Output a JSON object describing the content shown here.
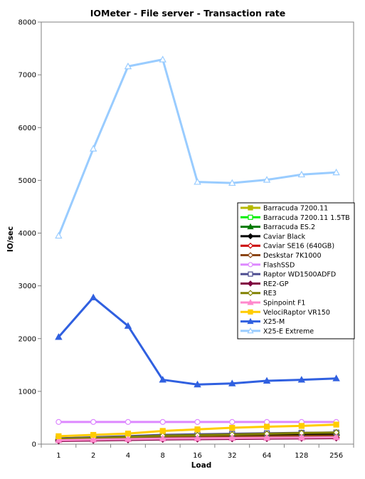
{
  "chart_data": {
    "type": "line",
    "title": "IOMeter - File server - Transaction rate",
    "xlabel": "Load",
    "ylabel": "IO/sec",
    "categories": [
      "1",
      "2",
      "4",
      "8",
      "16",
      "32",
      "64",
      "128",
      "256"
    ],
    "ylim": [
      0,
      8000
    ],
    "yticks": [
      "0",
      "1000",
      "2000",
      "3000",
      "4000",
      "5000",
      "6000",
      "7000",
      "8000"
    ],
    "grid": false,
    "legend_position": "right",
    "series": [
      {
        "name": "Barracuda 7200.11",
        "color": "#b5b800",
        "marker": "square-filled",
        "values": [
          100,
          115,
          130,
          150,
          160,
          170,
          185,
          200,
          210
        ]
      },
      {
        "name": "Barracuda 7200.11 1.5TB",
        "color": "#00ee00",
        "marker": "square-open",
        "values": [
          95,
          110,
          125,
          145,
          155,
          165,
          180,
          195,
          205
        ]
      },
      {
        "name": "Barracuda ES.2",
        "color": "#007a00",
        "marker": "triangle-filled",
        "values": [
          105,
          120,
          135,
          155,
          165,
          178,
          190,
          205,
          215
        ]
      },
      {
        "name": "Caviar Black",
        "color": "#000000",
        "marker": "diamond-filled",
        "values": [
          90,
          105,
          118,
          135,
          145,
          155,
          165,
          175,
          185
        ]
      },
      {
        "name": "Caviar SE16 (640GB)",
        "color": "#cc0000",
        "marker": "diamond-open",
        "values": [
          70,
          80,
          90,
          100,
          105,
          110,
          115,
          120,
          125
        ]
      },
      {
        "name": "Deskstar 7K1000",
        "color": "#8b4513",
        "marker": "diamond-open",
        "values": [
          85,
          98,
          110,
          125,
          132,
          140,
          148,
          155,
          160
        ]
      },
      {
        "name": "FlashSSD",
        "color": "#dd88ff",
        "marker": "circle-open",
        "values": [
          420,
          420,
          420,
          420,
          420,
          420,
          420,
          420,
          420
        ]
      },
      {
        "name": "Raptor WD1500ADFD",
        "color": "#4b4b8f",
        "marker": "square-open",
        "values": [
          110,
          130,
          150,
          175,
          185,
          195,
          205,
          215,
          220
        ]
      },
      {
        "name": "RE2-GP",
        "color": "#800040",
        "marker": "diamond-filled",
        "values": [
          60,
          70,
          80,
          90,
          95,
          100,
          105,
          110,
          115
        ]
      },
      {
        "name": "RE3",
        "color": "#808000",
        "marker": "diamond-open",
        "values": [
          100,
          118,
          135,
          160,
          170,
          182,
          195,
          210,
          220
        ]
      },
      {
        "name": "Spinpoint F1",
        "color": "#ff88cc",
        "marker": "triangle-filled",
        "values": [
          75,
          85,
          95,
          105,
          110,
          115,
          120,
          125,
          130
        ]
      },
      {
        "name": "VelociRaptor VR150",
        "color": "#ffcc00",
        "marker": "square-filled",
        "values": [
          150,
          175,
          200,
          250,
          280,
          310,
          330,
          345,
          370
        ]
      },
      {
        "name": "X25-M",
        "color": "#3060e0",
        "marker": "triangle-filled",
        "values": [
          2030,
          2780,
          2240,
          1220,
          1130,
          1150,
          1200,
          1220,
          1245
        ]
      },
      {
        "name": "X25-E Extreme",
        "color": "#99ccff",
        "marker": "triangle-open",
        "values": [
          3950,
          5600,
          7160,
          7290,
          4970,
          4950,
          5010,
          5110,
          5150
        ]
      }
    ]
  }
}
